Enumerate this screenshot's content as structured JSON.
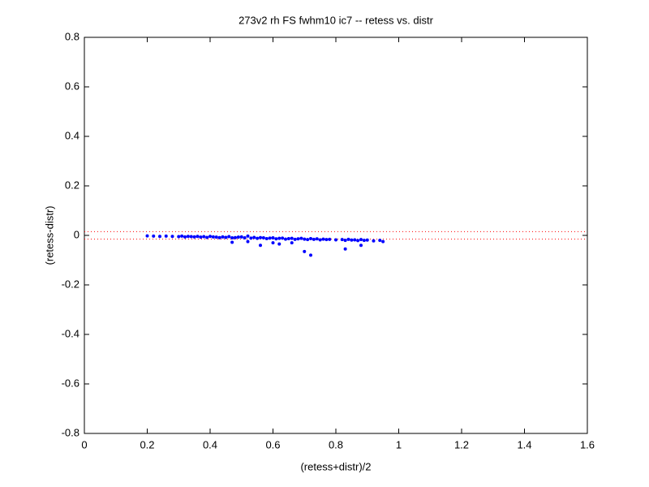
{
  "chart_data": {
    "type": "scatter",
    "title": "273v2 rh FS fwhm10 ic7 -- retess vs. distr",
    "x_label": "(retess+distr)/2",
    "y_label": "(retess-distr)",
    "xlim": [
      0,
      1.6
    ],
    "ylim": [
      -0.8,
      0.8
    ],
    "xticks": [
      0,
      0.2,
      0.4,
      0.6,
      0.8,
      1,
      1.2,
      1.4,
      1.6
    ],
    "yticks": [
      -0.8,
      -0.6,
      -0.4,
      -0.2,
      0,
      0.2,
      0.4,
      0.6,
      0.8
    ],
    "grid": false,
    "reference_lines": {
      "color": "#ff0000",
      "values": [
        0.015,
        -0.015
      ]
    },
    "series": [
      {
        "color": "#0000ff",
        "x": [
          0.2,
          0.22,
          0.24,
          0.26,
          0.28,
          0.3,
          0.31,
          0.32,
          0.33,
          0.34,
          0.35,
          0.36,
          0.37,
          0.38,
          0.39,
          0.4,
          0.41,
          0.42,
          0.43,
          0.44,
          0.45,
          0.46,
          0.47,
          0.48,
          0.49,
          0.5,
          0.51,
          0.52,
          0.53,
          0.54,
          0.55,
          0.56,
          0.57,
          0.58,
          0.59,
          0.6,
          0.61,
          0.62,
          0.63,
          0.64,
          0.65,
          0.66,
          0.67,
          0.68,
          0.69,
          0.7,
          0.71,
          0.72,
          0.73,
          0.74,
          0.75,
          0.76,
          0.77,
          0.78,
          0.8,
          0.82,
          0.83,
          0.84,
          0.85,
          0.86,
          0.87,
          0.88,
          0.89,
          0.9,
          0.92,
          0.94,
          0.95,
          0.47,
          0.52,
          0.56,
          0.62,
          0.7,
          0.72,
          0.83,
          0.88,
          0.6,
          0.66
        ],
        "values": [
          -0.002,
          -0.003,
          -0.004,
          -0.003,
          -0.004,
          -0.005,
          -0.003,
          -0.006,
          -0.004,
          -0.005,
          -0.006,
          -0.004,
          -0.007,
          -0.005,
          -0.008,
          -0.004,
          -0.006,
          -0.007,
          -0.009,
          -0.006,
          -0.008,
          -0.005,
          -0.01,
          -0.009,
          -0.007,
          -0.006,
          -0.01,
          -0.003,
          -0.011,
          -0.008,
          -0.012,
          -0.009,
          -0.01,
          -0.013,
          -0.011,
          -0.01,
          -0.014,
          -0.012,
          -0.011,
          -0.015,
          -0.013,
          -0.012,
          -0.016,
          -0.014,
          -0.012,
          -0.015,
          -0.017,
          -0.013,
          -0.016,
          -0.014,
          -0.018,
          -0.015,
          -0.017,
          -0.016,
          -0.018,
          -0.017,
          -0.02,
          -0.016,
          -0.019,
          -0.018,
          -0.021,
          -0.017,
          -0.02,
          -0.019,
          -0.022,
          -0.02,
          -0.025,
          -0.028,
          -0.025,
          -0.04,
          -0.035,
          -0.065,
          -0.08,
          -0.055,
          -0.04,
          -0.03,
          -0.03
        ]
      }
    ]
  }
}
